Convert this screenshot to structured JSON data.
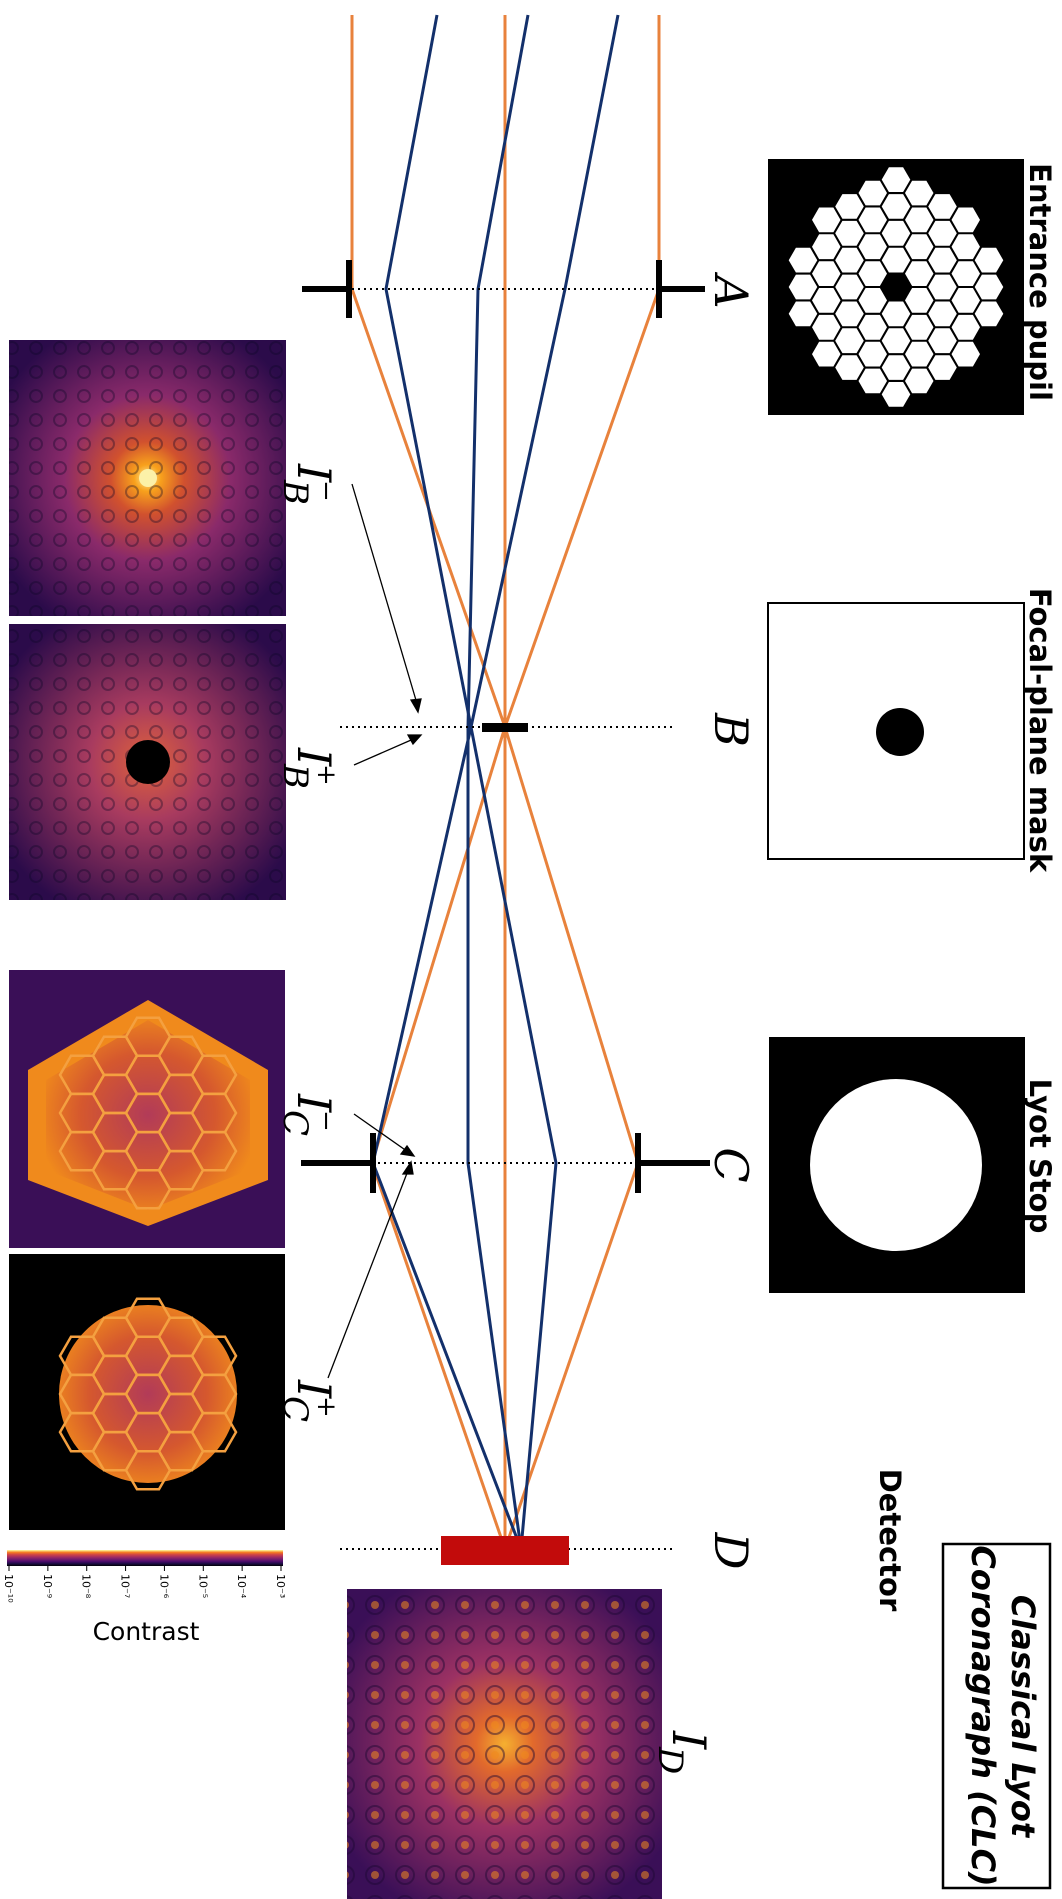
{
  "title": {
    "line1": "Classical Lyot",
    "line2": "Coronagraph (CLC)"
  },
  "planes": {
    "A": {
      "letter": "A",
      "label": "Entrance pupil"
    },
    "B": {
      "letter": "B",
      "label": "Focal-plane mask"
    },
    "C": {
      "letter": "C",
      "label": "Lyot Stop"
    },
    "D": {
      "letter": "D",
      "label": "Detector"
    }
  },
  "intensity_labels": {
    "IB_minus": {
      "base": "I",
      "sub": "B",
      "sup": "−"
    },
    "IB_plus": {
      "base": "I",
      "sub": "B",
      "sup": "+"
    },
    "IC_minus": {
      "base": "I",
      "sub": "C",
      "sup": "−"
    },
    "IC_plus": {
      "base": "I",
      "sub": "C",
      "sup": "+"
    },
    "ID": {
      "base": "I",
      "sub": "D"
    }
  },
  "colorbar": {
    "label": "Contrast",
    "ticks": [
      "10⁻¹⁰",
      "10⁻⁹",
      "10⁻⁸",
      "10⁻⁷",
      "10⁻⁶",
      "10⁻⁵",
      "10⁻⁴",
      "10⁻³"
    ]
  },
  "colors": {
    "ray_orange": "#e8823c",
    "ray_blue": "#13306b",
    "detector_red": "#c20b0b",
    "inferno_dark": "#0c0525",
    "inferno_purple": "#5a1a6e",
    "inferno_orange": "#f08a1c",
    "inferno_yellow": "#fcf1a8"
  }
}
